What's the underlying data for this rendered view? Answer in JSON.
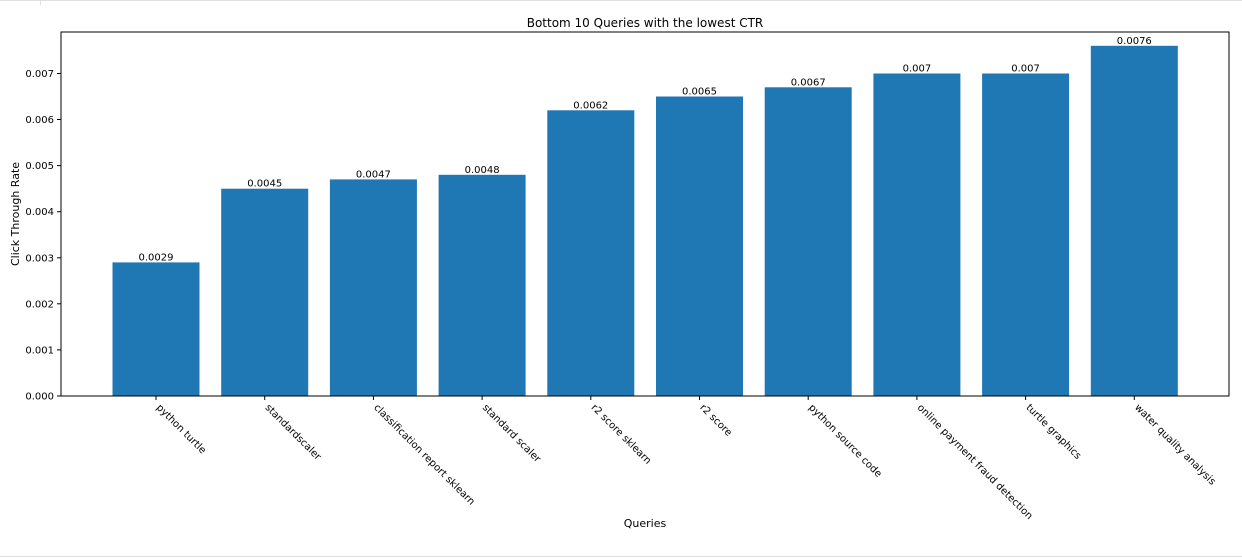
{
  "chart_data": {
    "type": "bar",
    "title": "Bottom 10 Queries with the lowest CTR",
    "xlabel": "Queries",
    "ylabel": "Click Through Rate",
    "categories": [
      "python turtle",
      "standardscaler",
      "classification report sklearn",
      "standard scaler",
      "r2 score sklearn",
      "r2 score",
      "python source code",
      "online payment fraud detection",
      "turtle graphics",
      "water quality analysis"
    ],
    "values": [
      0.0029,
      0.0045,
      0.0047,
      0.0048,
      0.0062,
      0.0065,
      0.0067,
      0.007,
      0.007,
      0.0076
    ],
    "data_labels": [
      "0.0029",
      "0.0045",
      "0.0047",
      "0.0048",
      "0.0062",
      "0.0065",
      "0.0067",
      "0.007",
      "0.007",
      "0.0076"
    ],
    "yticks": [
      "0.000",
      "0.001",
      "0.002",
      "0.003",
      "0.004",
      "0.005",
      "0.006",
      "0.007"
    ],
    "ylim": [
      0,
      0.0079
    ],
    "grid": false,
    "legend": "none",
    "bar_color": "#1f77b4"
  }
}
